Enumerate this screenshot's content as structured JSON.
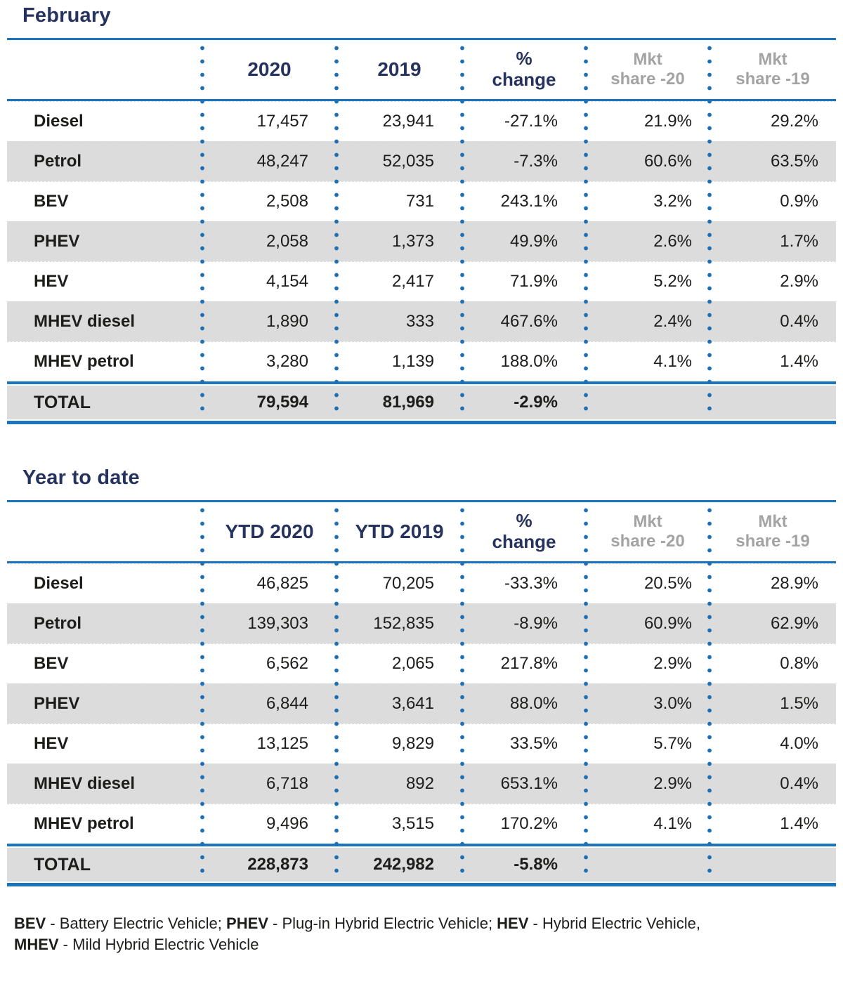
{
  "colors": {
    "accent_blue": "#1b74bc",
    "navy_heading": "#27335f",
    "row_stripe_gray": "#dcdcdc",
    "muted_header_gray": "#a3a3a3",
    "body_text": "#1d1d1b"
  },
  "tables": [
    {
      "id": "february",
      "title": "February",
      "columns": [
        "",
        "2020",
        "2019",
        "%\nchange",
        "Mkt\nshare -20",
        "Mkt\nshare -19"
      ],
      "rows": [
        {
          "label": "Diesel",
          "values": [
            "17,457",
            "23,941",
            "-27.1%",
            "21.9%",
            "29.2%"
          ]
        },
        {
          "label": "Petrol",
          "values": [
            "48,247",
            "52,035",
            "-7.3%",
            "60.6%",
            "63.5%"
          ]
        },
        {
          "label": "BEV",
          "values": [
            "2,508",
            "731",
            "243.1%",
            "3.2%",
            "0.9%"
          ]
        },
        {
          "label": "PHEV",
          "values": [
            "2,058",
            "1,373",
            "49.9%",
            "2.6%",
            "1.7%"
          ]
        },
        {
          "label": "HEV",
          "values": [
            "4,154",
            "2,417",
            "71.9%",
            "5.2%",
            "2.9%"
          ]
        },
        {
          "label": "MHEV diesel",
          "values": [
            "1,890",
            "333",
            "467.6%",
            "2.4%",
            "0.4%"
          ]
        },
        {
          "label": "MHEV petrol",
          "values": [
            "3,280",
            "1,139",
            "188.0%",
            "4.1%",
            "1.4%"
          ]
        }
      ],
      "total": {
        "label": "TOTAL",
        "values": [
          "79,594",
          "81,969",
          "-2.9%",
          "",
          ""
        ]
      }
    },
    {
      "id": "year-to-date",
      "title": "Year to date",
      "columns": [
        "",
        "YTD 2020",
        "YTD 2019",
        "%\nchange",
        "Mkt\nshare -20",
        "Mkt\nshare -19"
      ],
      "rows": [
        {
          "label": "Diesel",
          "values": [
            "46,825",
            "70,205",
            "-33.3%",
            "20.5%",
            "28.9%"
          ]
        },
        {
          "label": "Petrol",
          "values": [
            "139,303",
            "152,835",
            "-8.9%",
            "60.9%",
            "62.9%"
          ]
        },
        {
          "label": "BEV",
          "values": [
            "6,562",
            "2,065",
            "217.8%",
            "2.9%",
            "0.8%"
          ]
        },
        {
          "label": "PHEV",
          "values": [
            "6,844",
            "3,641",
            "88.0%",
            "3.0%",
            "1.5%"
          ]
        },
        {
          "label": "HEV",
          "values": [
            "13,125",
            "9,829",
            "33.5%",
            "5.7%",
            "4.0%"
          ]
        },
        {
          "label": "MHEV diesel",
          "values": [
            "6,718",
            "892",
            "653.1%",
            "2.9%",
            "0.4%"
          ]
        },
        {
          "label": "MHEV petrol",
          "values": [
            "9,496",
            "3,515",
            "170.2%",
            "4.1%",
            "1.4%"
          ]
        }
      ],
      "total": {
        "label": "TOTAL",
        "values": [
          "228,873",
          "242,982",
          "-5.8%",
          "",
          ""
        ]
      }
    }
  ],
  "footnote": {
    "segments": [
      {
        "text": "BEV",
        "bold": true
      },
      {
        "text": " - Battery Electric Vehicle; ",
        "bold": false
      },
      {
        "text": "PHEV",
        "bold": true
      },
      {
        "text": " - Plug-in Hybrid Electric Vehicle; ",
        "bold": false
      },
      {
        "text": "HEV",
        "bold": true
      },
      {
        "text": " - Hybrid Electric Vehicle,",
        "bold": false
      },
      {
        "text": "MHEV",
        "bold": true,
        "break_before": true
      },
      {
        "text": " - Mild Hybrid Electric Vehicle",
        "bold": false
      }
    ]
  },
  "chart_data": [
    {
      "type": "table",
      "title": "February",
      "columns": [
        "",
        "2020",
        "2019",
        "% change",
        "Mkt share -20",
        "Mkt share -19"
      ],
      "rows": [
        [
          "Diesel",
          "17,457",
          "23,941",
          "-27.1%",
          "21.9%",
          "29.2%"
        ],
        [
          "Petrol",
          "48,247",
          "52,035",
          "-7.3%",
          "60.6%",
          "63.5%"
        ],
        [
          "BEV",
          "2,508",
          "731",
          "243.1%",
          "3.2%",
          "0.9%"
        ],
        [
          "PHEV",
          "2,058",
          "1,373",
          "49.9%",
          "2.6%",
          "1.7%"
        ],
        [
          "HEV",
          "4,154",
          "2,417",
          "71.9%",
          "5.2%",
          "2.9%"
        ],
        [
          "MHEV diesel",
          "1,890",
          "333",
          "467.6%",
          "2.4%",
          "0.4%"
        ],
        [
          "MHEV petrol",
          "3,280",
          "1,139",
          "188.0%",
          "4.1%",
          "1.4%"
        ],
        [
          "TOTAL",
          "79,594",
          "81,969",
          "-2.9%",
          "",
          ""
        ]
      ]
    },
    {
      "type": "table",
      "title": "Year to date",
      "columns": [
        "",
        "YTD 2020",
        "YTD 2019",
        "% change",
        "Mkt share -20",
        "Mkt share -19"
      ],
      "rows": [
        [
          "Diesel",
          "46,825",
          "70,205",
          "-33.3%",
          "20.5%",
          "28.9%"
        ],
        [
          "Petrol",
          "139,303",
          "152,835",
          "-8.9%",
          "60.9%",
          "62.9%"
        ],
        [
          "BEV",
          "6,562",
          "2,065",
          "217.8%",
          "2.9%",
          "0.8%"
        ],
        [
          "PHEV",
          "6,844",
          "3,641",
          "88.0%",
          "3.0%",
          "1.5%"
        ],
        [
          "HEV",
          "13,125",
          "9,829",
          "33.5%",
          "5.7%",
          "4.0%"
        ],
        [
          "MHEV diesel",
          "6,718",
          "892",
          "653.1%",
          "2.9%",
          "0.4%"
        ],
        [
          "MHEV petrol",
          "9,496",
          "3,515",
          "170.2%",
          "4.1%",
          "1.4%"
        ],
        [
          "TOTAL",
          "228,873",
          "242,982",
          "-5.8%",
          "",
          ""
        ]
      ]
    }
  ]
}
